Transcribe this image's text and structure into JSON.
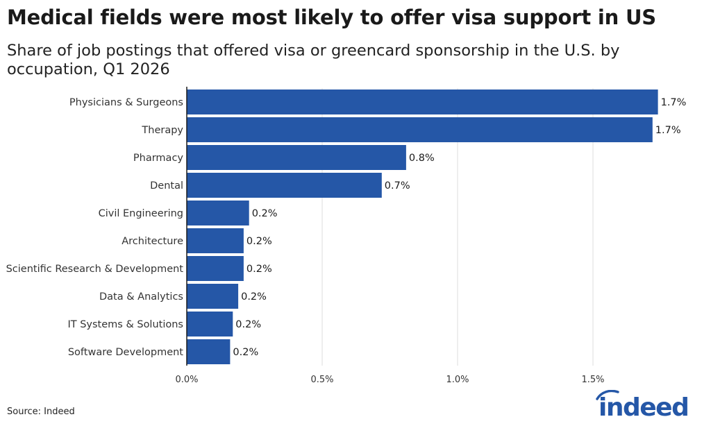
{
  "header": {
    "title": "Medical fields were most likely to offer visa support in US",
    "subtitle": "Share of job postings that offered visa or greencard sponsorship in the U.S. by occupation, Q1 2026"
  },
  "footer": {
    "source": "Source: Indeed",
    "logo_text": "indeed"
  },
  "colors": {
    "bar": "#2557a7",
    "grid": "#dcdcdc",
    "axis": "#1a1a1a"
  },
  "chart_data": {
    "type": "bar",
    "orientation": "horizontal",
    "categories": [
      "Physicians & Surgeons",
      "Therapy",
      "Pharmacy",
      "Dental",
      "Civil Engineering",
      "Architecture",
      "Scientific Research & Development",
      "Data & Analytics",
      "IT Systems & Solutions",
      "Software Development"
    ],
    "values": [
      1.74,
      1.72,
      0.81,
      0.72,
      0.23,
      0.21,
      0.21,
      0.19,
      0.17,
      0.16
    ],
    "data_labels": [
      "1.7%",
      "1.7%",
      "0.8%",
      "0.7%",
      "0.2%",
      "0.2%",
      "0.2%",
      "0.2%",
      "0.2%",
      "0.2%"
    ],
    "xlim": [
      0,
      1.8
    ],
    "xticks": [
      0,
      0.5,
      1.0,
      1.5
    ],
    "xtick_labels": [
      "0.0%",
      "0.5%",
      "1.0%",
      "1.5%"
    ],
    "grid": "vertical",
    "legend": "none"
  }
}
